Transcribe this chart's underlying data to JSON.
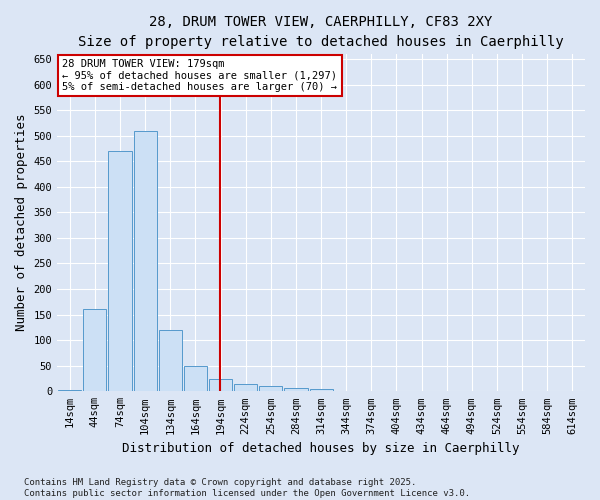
{
  "title_line1": "28, DRUM TOWER VIEW, CAERPHILLY, CF83 2XY",
  "title_line2": "Size of property relative to detached houses in Caerphilly",
  "xlabel": "Distribution of detached houses by size in Caerphilly",
  "ylabel": "Number of detached properties",
  "categories": [
    "14sqm",
    "44sqm",
    "74sqm",
    "104sqm",
    "134sqm",
    "164sqm",
    "194sqm",
    "224sqm",
    "254sqm",
    "284sqm",
    "314sqm",
    "344sqm",
    "374sqm",
    "404sqm",
    "434sqm",
    "464sqm",
    "494sqm",
    "524sqm",
    "554sqm",
    "584sqm",
    "614sqm"
  ],
  "values": [
    2,
    160,
    470,
    510,
    120,
    50,
    25,
    15,
    10,
    7,
    5,
    0,
    0,
    0,
    0,
    0,
    0,
    0,
    0,
    0,
    0
  ],
  "bar_color": "#cce0f5",
  "bar_edge_color": "#5599cc",
  "vline_position": 6.5,
  "vline_color": "#cc0000",
  "annotation_text": "28 DRUM TOWER VIEW: 179sqm\n← 95% of detached houses are smaller (1,297)\n5% of semi-detached houses are larger (70) →",
  "annotation_box_color": "#ffffff",
  "annotation_box_edge": "#cc0000",
  "ylim": [
    0,
    660
  ],
  "yticks": [
    0,
    50,
    100,
    150,
    200,
    250,
    300,
    350,
    400,
    450,
    500,
    550,
    600,
    650
  ],
  "background_color": "#dce6f5",
  "footer_line1": "Contains HM Land Registry data © Crown copyright and database right 2025.",
  "footer_line2": "Contains public sector information licensed under the Open Government Licence v3.0.",
  "title_fontsize": 10,
  "subtitle_fontsize": 9,
  "axis_label_fontsize": 9,
  "tick_fontsize": 7.5,
  "footer_fontsize": 6.5
}
